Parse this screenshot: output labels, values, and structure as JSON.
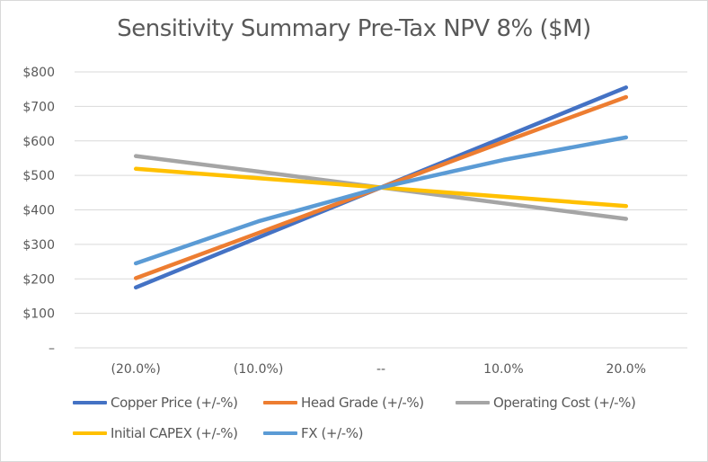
{
  "chart_data": {
    "type": "line",
    "title": "Sensitivity Summary Pre-Tax NPV  8% ($M)",
    "xlabel": "",
    "ylabel": "",
    "categories": [
      "(20.0%)",
      "(10.0%)",
      "--",
      "10.0%",
      "20.0%"
    ],
    "y_ticks": [
      "–",
      "$100",
      "$200",
      "$300",
      "$400",
      "$500",
      "$600",
      "$700",
      "$800"
    ],
    "ylim": [
      0,
      800
    ],
    "grid": true,
    "legend_position": "bottom",
    "series": [
      {
        "name": "Copper Price (+/-%)",
        "color": "#4472c4",
        "values": [
          175,
          320,
          465,
          610,
          755
        ]
      },
      {
        "name": "Head Grade (+/-%)",
        "color": "#ed7d31",
        "values": [
          202,
          333,
          465,
          597,
          727
        ]
      },
      {
        "name": "Operating Cost (+/-%)",
        "color": "#a5a5a5",
        "values": [
          556,
          511,
          465,
          419,
          374
        ]
      },
      {
        "name": "Initial CAPEX  (+/-%)",
        "color": "#ffc000",
        "values": [
          519,
          492,
          465,
          438,
          411
        ]
      },
      {
        "name": "FX  (+/-%)",
        "color": "#5b9bd5",
        "values": [
          245,
          367,
          465,
          545,
          610
        ]
      }
    ]
  }
}
